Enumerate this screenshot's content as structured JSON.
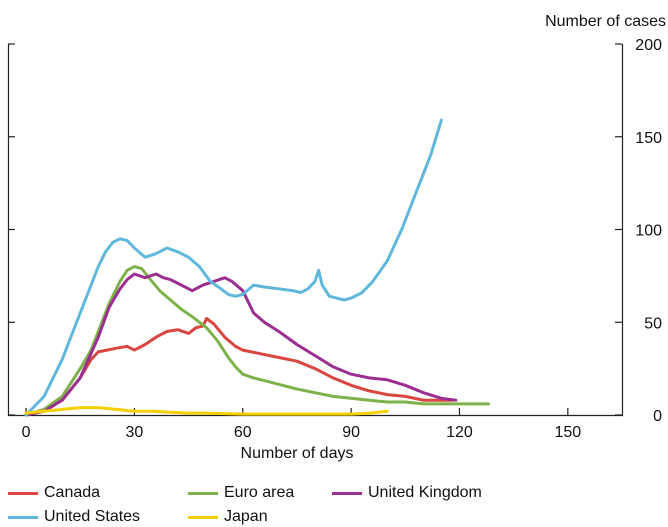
{
  "chart_data": {
    "type": "line",
    "title": "",
    "xlabel": "Number of days",
    "ylabel": "Number of cases",
    "xlim": [
      -5,
      165
    ],
    "ylim": [
      0,
      200
    ],
    "xticks": [
      "0",
      "30",
      "60",
      "90",
      "120",
      "150"
    ],
    "xtick_values": [
      0,
      30,
      60,
      90,
      120,
      150
    ],
    "yticks": [
      "0",
      "50",
      "100",
      "150",
      "200"
    ],
    "ytick_values": [
      0,
      50,
      100,
      150,
      200
    ],
    "grid": false,
    "legend_position": "bottom",
    "series": [
      {
        "name": "Canada",
        "color": "#d9463f",
        "x": [
          0,
          5,
          10,
          15,
          18,
          20,
          25,
          28,
          30,
          33,
          36,
          39,
          42,
          45,
          47,
          49,
          50,
          52,
          55,
          58,
          60,
          65,
          70,
          75,
          80,
          85,
          90,
          95,
          100,
          105,
          110,
          115,
          118
        ],
        "y": [
          0,
          3,
          8,
          20,
          30,
          34,
          36,
          37,
          35,
          38,
          42,
          45,
          46,
          44,
          47,
          48,
          52,
          49,
          42,
          37,
          35,
          33,
          31,
          29,
          25,
          20,
          16,
          13,
          11,
          10,
          8,
          8,
          8
        ]
      },
      {
        "name": "Euro area",
        "color": "#7db14a",
        "x": [
          0,
          5,
          10,
          15,
          18,
          20,
          23,
          26,
          28,
          30,
          32,
          34,
          37,
          40,
          43,
          46,
          50,
          53,
          56,
          58,
          60,
          63,
          67,
          71,
          75,
          80,
          85,
          90,
          95,
          100,
          105,
          110,
          115,
          120,
          125,
          128
        ],
        "y": [
          0,
          3,
          10,
          25,
          35,
          45,
          60,
          72,
          78,
          80,
          79,
          74,
          67,
          62,
          57,
          53,
          47,
          40,
          31,
          26,
          22,
          20,
          18,
          16,
          14,
          12,
          10,
          9,
          8,
          7,
          7,
          6,
          6,
          6,
          6,
          6
        ]
      },
      {
        "name": "United Kingdom",
        "color": "#9a2f91",
        "x": [
          0,
          5,
          10,
          15,
          20,
          23,
          26,
          28,
          30,
          33,
          36,
          38,
          40,
          43,
          46,
          49,
          52,
          55,
          57,
          60,
          63,
          66,
          70,
          75,
          80,
          85,
          90,
          95,
          100,
          105,
          110,
          115,
          119
        ],
        "y": [
          0,
          2,
          8,
          20,
          42,
          58,
          68,
          73,
          76,
          74,
          76,
          74,
          73,
          70,
          67,
          70,
          72,
          74,
          72,
          67,
          55,
          50,
          45,
          38,
          32,
          26,
          22,
          20,
          19,
          16,
          12,
          9,
          8
        ]
      },
      {
        "name": "United States",
        "color": "#5fb8dc",
        "x": [
          0,
          5,
          10,
          15,
          18,
          20,
          22,
          24,
          26,
          28,
          30,
          33,
          36,
          39,
          42,
          45,
          48,
          51,
          54,
          56,
          58,
          60,
          63,
          66,
          70,
          74,
          76,
          78,
          80,
          81,
          82,
          84,
          86,
          88,
          90,
          93,
          96,
          100,
          104,
          108,
          112,
          115
        ],
        "y": [
          0,
          10,
          30,
          55,
          70,
          80,
          88,
          93,
          95,
          94,
          90,
          85,
          87,
          90,
          88,
          85,
          80,
          72,
          68,
          65,
          64,
          65,
          70,
          69,
          68,
          67,
          66,
          68,
          72,
          78,
          70,
          64,
          63,
          62,
          63,
          66,
          72,
          83,
          100,
          120,
          140,
          159
        ]
      },
      {
        "name": "Japan",
        "color": "#f4d000",
        "x": [
          0,
          5,
          10,
          15,
          20,
          25,
          30,
          35,
          40,
          45,
          50,
          60,
          70,
          80,
          90,
          95,
          100
        ],
        "y": [
          1,
          2,
          3,
          4,
          4,
          3,
          2,
          2,
          1.5,
          1,
          1,
          0.5,
          0.5,
          0.5,
          0.5,
          1,
          2
        ]
      }
    ]
  },
  "legend": {
    "items": [
      "Canada",
      "Euro area",
      "United Kingdom",
      "United States",
      "Japan"
    ]
  }
}
